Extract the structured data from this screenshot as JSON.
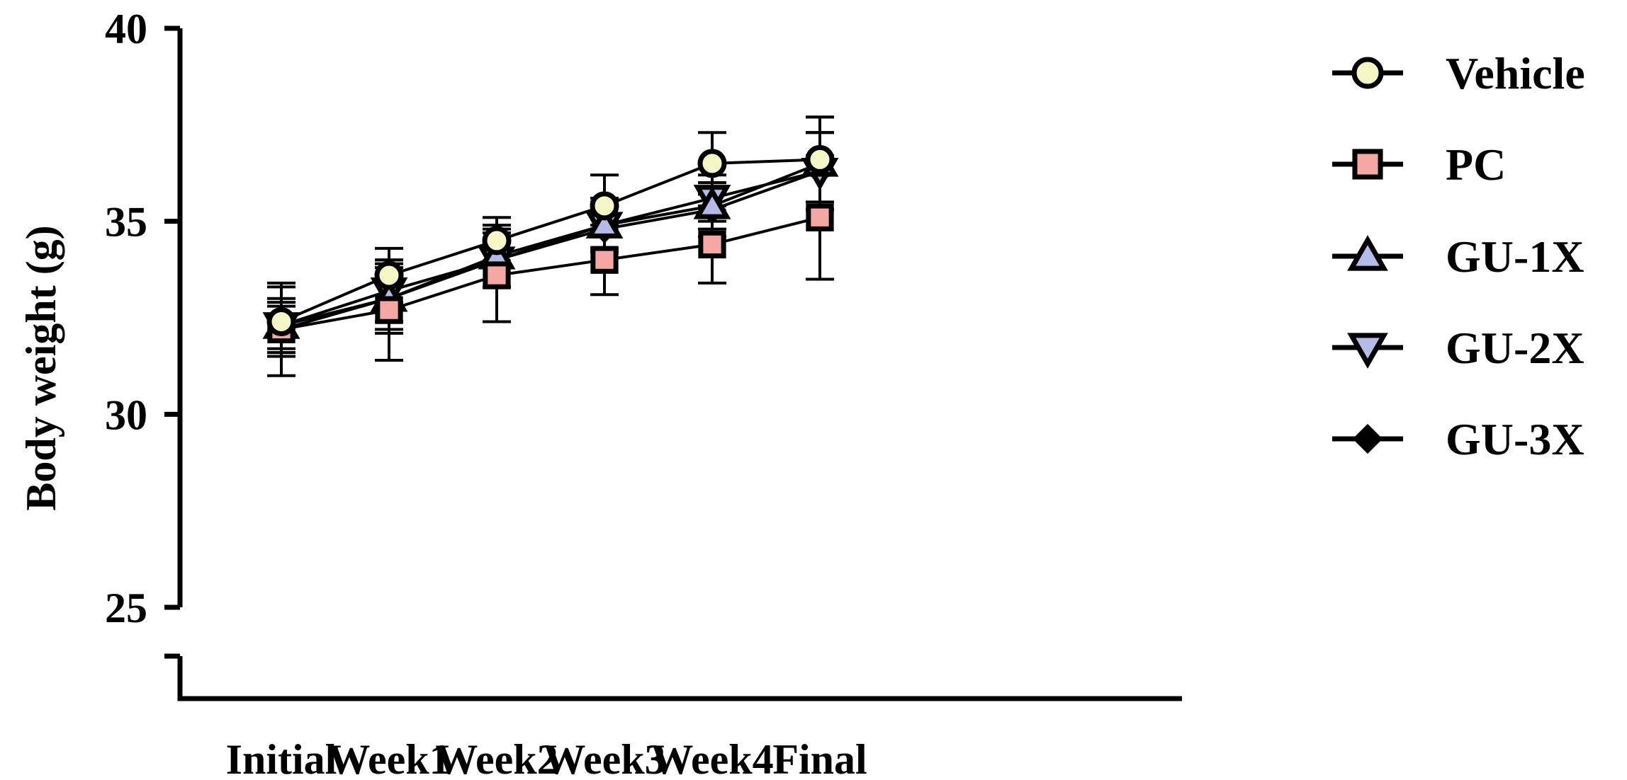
{
  "chart_data": {
    "type": "line",
    "title": "",
    "xlabel": "",
    "ylabel": "Body weight (g)",
    "categories": [
      "Initial",
      "Week1",
      "Week2",
      "Week3",
      "Week4",
      "Final"
    ],
    "ylim": [
      25,
      40
    ],
    "yticks": [
      "40",
      "35",
      "30",
      "25"
    ],
    "axis_break": "below 25",
    "grid": false,
    "legend_position": "right",
    "error_bars": true,
    "series": [
      {
        "name": "Vehicle",
        "marker": "circle",
        "color": "#f5f7c8",
        "values": [
          32.4,
          33.6,
          34.5,
          35.4,
          36.5,
          36.6
        ],
        "errors": [
          0.9,
          0.7,
          0.6,
          0.8,
          0.8,
          1.1
        ]
      },
      {
        "name": "PC",
        "marker": "square",
        "color": "#f4a7a3",
        "values": [
          32.2,
          32.7,
          33.6,
          34.0,
          34.4,
          35.1
        ],
        "errors": [
          1.2,
          1.3,
          1.2,
          0.9,
          1.0,
          1.6
        ]
      },
      {
        "name": "GU-1X",
        "marker": "triangle-up",
        "color": "#b3bbe6",
        "values": [
          32.3,
          33.0,
          34.1,
          34.9,
          35.4,
          36.5
        ],
        "errors": [
          0.6,
          0.9,
          0.8,
          0.6,
          0.6,
          1.2
        ]
      },
      {
        "name": "GU-2X",
        "marker": "triangle-down",
        "color": "#b3bbe6",
        "values": [
          32.3,
          33.2,
          34.0,
          34.9,
          35.6,
          36.3
        ],
        "errors": [
          0.7,
          0.8,
          0.7,
          0.7,
          0.6,
          1.0
        ]
      },
      {
        "name": "GU-3X",
        "marker": "diamond",
        "color": "#000000",
        "values": [
          32.2,
          33.0,
          34.0,
          34.8,
          35.3,
          36.3
        ],
        "errors": [
          0.6,
          0.8,
          0.7,
          0.6,
          0.7,
          1.0
        ]
      }
    ]
  }
}
